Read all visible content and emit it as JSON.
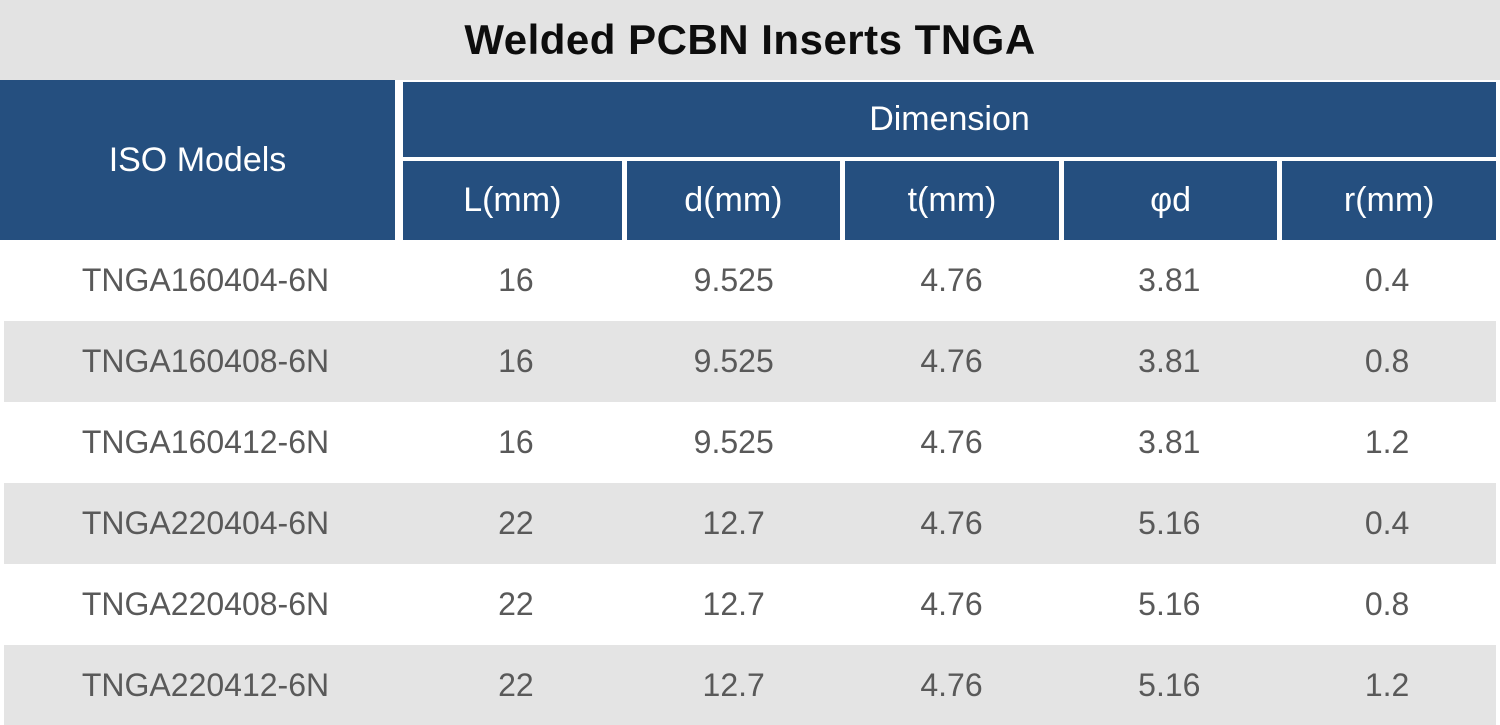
{
  "chart_data": {
    "type": "table",
    "title": "Welded PCBN Inserts TNGA",
    "header": {
      "iso": "ISO Models",
      "group": "Dimension",
      "sub": [
        "L(mm)",
        "d(mm)",
        "t(mm)",
        "φd",
        "r(mm)"
      ]
    },
    "columns": [
      "ISO Models",
      "L(mm)",
      "d(mm)",
      "t(mm)",
      "φd",
      "r(mm)"
    ],
    "rows": [
      [
        "TNGA160404-6N",
        "16",
        "9.525",
        "4.76",
        "3.81",
        "0.4"
      ],
      [
        "TNGA160408-6N",
        "16",
        "9.525",
        "4.76",
        "3.81",
        "0.8"
      ],
      [
        "TNGA160412-6N",
        "16",
        "9.525",
        "4.76",
        "3.81",
        "1.2"
      ],
      [
        "TNGA220404-6N",
        "22",
        "12.7",
        "4.76",
        "5.16",
        "0.4"
      ],
      [
        "TNGA220408-6N",
        "22",
        "12.7",
        "4.76",
        "5.16",
        "0.8"
      ],
      [
        "TNGA220412-6N",
        "22",
        "12.7",
        "4.76",
        "5.16",
        "1.2"
      ]
    ],
    "layout": {
      "striped": true,
      "header_merged_first_column": true,
      "group_header_spans": 5
    }
  },
  "colors": {
    "header_bg": "#254f7f",
    "header_text": "#ffffff",
    "title_band_bg": "#e3e3e3",
    "title_text": "#0d0d0d",
    "stripe_bg": "#e4e4e4",
    "body_text": "#595959"
  }
}
